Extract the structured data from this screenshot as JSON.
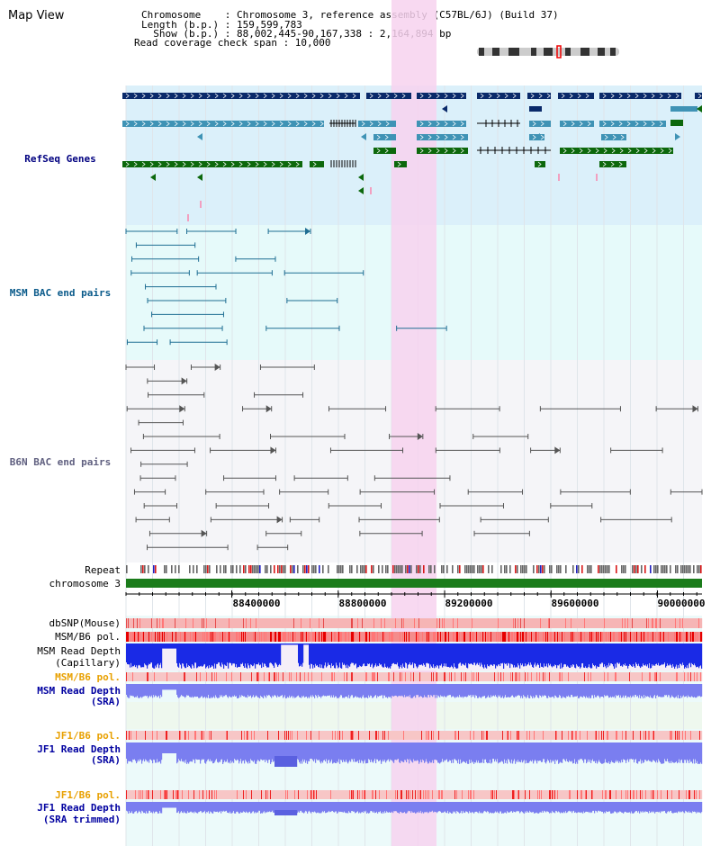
{
  "title": "Map View",
  "info": {
    "chromosome": "Chromosome    : Chromosome 3, reference assembly (C57BL/6J) (Build 37)",
    "length": "Length (b.p.) : 159,599,783",
    "show": "  Show (b.p.) : 88,002,445-90,167,338 : 2,164,894 bp",
    "span": "Read coverage check span : 10,000"
  },
  "tracks": {
    "refseq": "RefSeq Genes",
    "msm_bac": "MSM BAC end pairs",
    "b6n_bac": "B6N BAC end pairs",
    "repeat": "Repeat",
    "chromosome": "chromosome 3",
    "dbsnp": "dbSNP(Mouse)",
    "msm_b6_pol": "MSM/B6 pol.",
    "msm_rd_cap_1": "MSM Read Depth",
    "msm_rd_cap_2": "(Capillary)",
    "msm_b6_pol2": "MSM/B6 pol.",
    "msm_rd_sra_1": "MSM Read Depth",
    "msm_rd_sra_2": "(SRA)",
    "jf1_b6_pol": "JF1/B6 pol.",
    "jf1_rd_sra_1": "JF1 Read Depth",
    "jf1_rd_sra_2": "(SRA)",
    "jf1_b6_pol2": "JF1/B6 pol.",
    "jf1_rd_trim_1": "JF1 Read Depth",
    "jf1_rd_trim_2": "(SRA trimmed)"
  },
  "axis": {
    "ticks": [
      "88400000",
      "88800000",
      "89200000",
      "89600000",
      "90000000"
    ],
    "tick_values": [
      88400000,
      88800000,
      89200000,
      89600000,
      90000000
    ],
    "range": [
      88002445,
      90167338
    ]
  },
  "colors": {
    "refseq_bg": "#dbf0fa",
    "bac_bg": "#e6fafa",
    "b6n_bg": "#f5f5f8",
    "highlight": "#f7d2ee",
    "navy": "#0a2a6a",
    "steel": "#3f93b5",
    "green": "#0c680c",
    "chrom": "#1b7c1b"
  }
}
